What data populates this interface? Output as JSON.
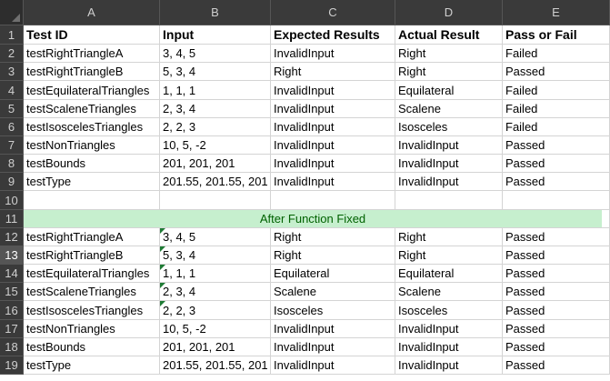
{
  "columns": [
    "A",
    "B",
    "C",
    "D",
    "E"
  ],
  "header": {
    "test_id": "Test ID",
    "input": "Input",
    "expected": "Expected Results",
    "actual": "Actual Result",
    "pass_fail": "Pass or Fail"
  },
  "rows_before": [
    {
      "num": "2",
      "id": "testRightTriangleA",
      "input": "3, 4, 5",
      "expected": "InvalidInput",
      "actual": "Right",
      "result": "Failed"
    },
    {
      "num": "3",
      "id": "testRightTriangleB",
      "input": "5, 3, 4",
      "expected": "Right",
      "actual": "Right",
      "result": "Passed"
    },
    {
      "num": "4",
      "id": "testEquilateralTriangles",
      "input": "1, 1, 1",
      "expected": "InvalidInput",
      "actual": "Equilateral",
      "result": "Failed"
    },
    {
      "num": "5",
      "id": "testScaleneTriangles",
      "input": "2, 3, 4",
      "expected": "InvalidInput",
      "actual": "Scalene",
      "result": "Failed"
    },
    {
      "num": "6",
      "id": "testIsoscelesTriangles",
      "input": "2, 2, 3",
      "expected": "InvalidInput",
      "actual": "Isosceles",
      "result": "Failed"
    },
    {
      "num": "7",
      "id": "testNonTriangles",
      "input": "10, 5, -2",
      "expected": "InvalidInput",
      "actual": "InvalidInput",
      "result": "Passed"
    },
    {
      "num": "8",
      "id": "testBounds",
      "input": "201, 201, 201",
      "expected": "InvalidInput",
      "actual": "InvalidInput",
      "result": "Passed"
    },
    {
      "num": "9",
      "id": "testType",
      "input": "201.55, 201.55, 201",
      "expected": "InvalidInput",
      "actual": "InvalidInput",
      "result": "Passed"
    }
  ],
  "empty_row_num": "10",
  "banner": {
    "num": "11",
    "text": "After Function Fixed"
  },
  "rows_after": [
    {
      "num": "12",
      "id": "testRightTriangleA",
      "input": "3, 4, 5",
      "expected": "Right",
      "actual": "Right",
      "result": "Passed"
    },
    {
      "num": "13",
      "id": "testRightTriangleB",
      "input": "5, 3, 4",
      "expected": "Right",
      "actual": "Right",
      "result": "Passed"
    },
    {
      "num": "14",
      "id": "testEquilateralTriangles",
      "input": "1, 1, 1",
      "expected": "Equilateral",
      "actual": "Equilateral",
      "result": "Passed"
    },
    {
      "num": "15",
      "id": "testScaleneTriangles",
      "input": "2, 3, 4",
      "expected": "Scalene",
      "actual": "Scalene",
      "result": "Passed"
    },
    {
      "num": "16",
      "id": "testIsoscelesTriangles",
      "input": "2, 2, 3",
      "expected": "Isosceles",
      "actual": "Isosceles",
      "result": "Passed"
    },
    {
      "num": "17",
      "id": "testNonTriangles",
      "input": "10, 5, -2",
      "expected": "InvalidInput",
      "actual": "InvalidInput",
      "result": "Passed"
    },
    {
      "num": "18",
      "id": "testBounds",
      "input": "201, 201, 201",
      "expected": "InvalidInput",
      "actual": "InvalidInput",
      "result": "Passed"
    },
    {
      "num": "19",
      "id": "testType",
      "input": "201.55, 201.55, 201",
      "expected": "InvalidInput",
      "actual": "InvalidInput",
      "result": "Passed"
    }
  ],
  "header_row_num": "1",
  "colors": {
    "banner_fill": "#c6efce",
    "banner_text": "#006100",
    "number_as_text_marker": "#1e7b34"
  }
}
